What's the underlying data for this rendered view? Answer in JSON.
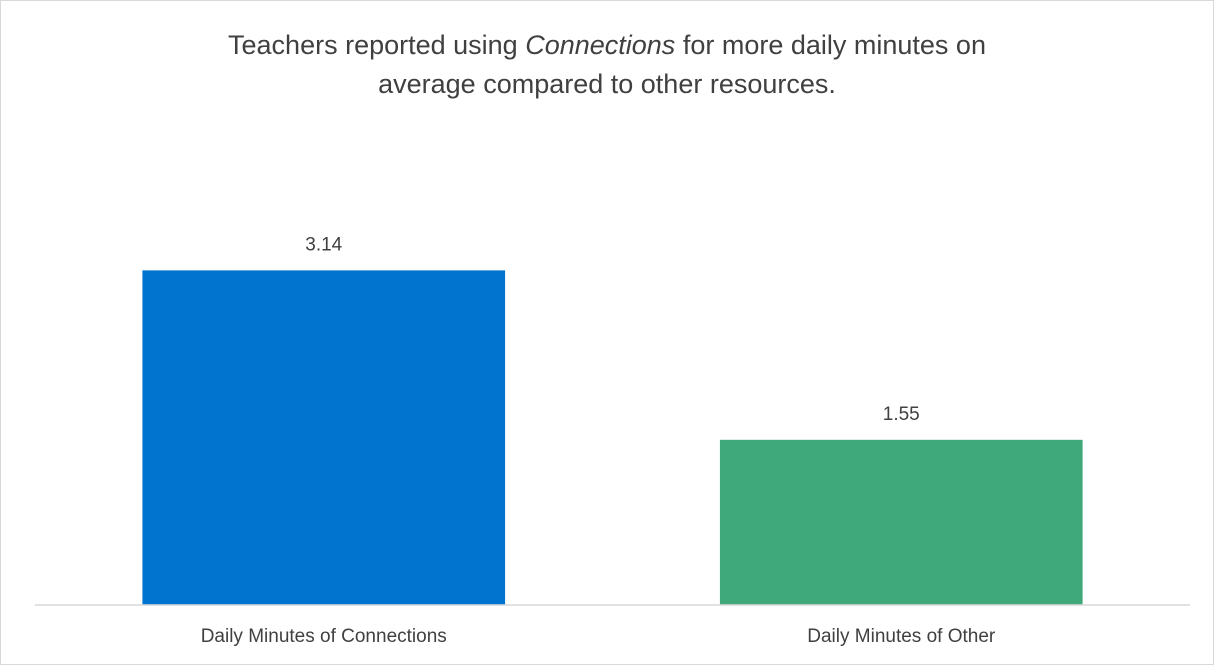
{
  "chart_data": {
    "type": "bar",
    "title": [
      "Teachers reported using",
      "Connections",
      "for more daily minutes on",
      "average compared to other resources."
    ],
    "categories": [
      "Daily Minutes of Connections",
      "Daily Minutes of Other"
    ],
    "values": [
      3.14,
      1.55
    ],
    "colors": [
      "#0074cf",
      "#3fa97c"
    ],
    "ylim": [
      0,
      3.5
    ]
  }
}
